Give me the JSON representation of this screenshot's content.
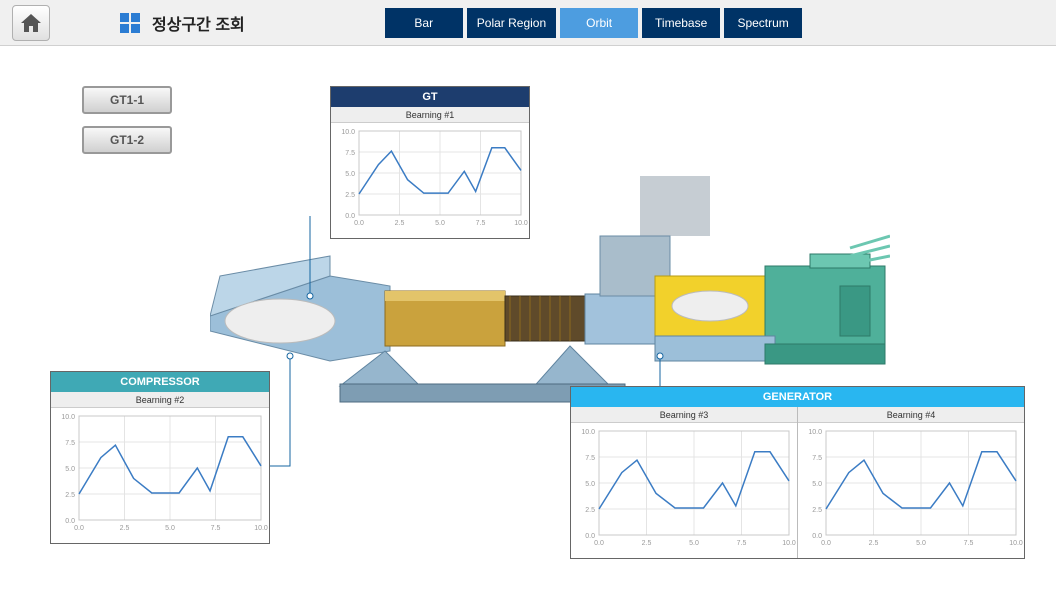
{
  "header": {
    "title": "정상구간 조회",
    "tabs": [
      "Bar",
      "Polar Region",
      "Orbit",
      "Timebase",
      "Spectrum"
    ],
    "active_tab": "Orbit"
  },
  "unit_buttons": [
    "GT1-1",
    "GT1-2"
  ],
  "charts": {
    "gt": {
      "title": "GT",
      "title_bg": "#1d3d6e",
      "subtitle": "Bearning #1",
      "type": "line",
      "xlim": [
        0,
        10
      ],
      "ylim": [
        0,
        10
      ],
      "xticks": [
        0.0,
        2.5,
        5.0,
        7.5,
        10.0
      ],
      "yticks": [
        0.0,
        2.5,
        5.0,
        7.5,
        10.0
      ],
      "line_color": "#3b7cc4",
      "grid_color": "#e4e4e4",
      "points": [
        [
          0,
          2.5
        ],
        [
          1.2,
          6.0
        ],
        [
          2.0,
          7.6
        ],
        [
          3.0,
          4.2
        ],
        [
          4.0,
          2.6
        ],
        [
          5.5,
          2.6
        ],
        [
          6.5,
          5.2
        ],
        [
          7.2,
          2.8
        ],
        [
          8.2,
          8.0
        ],
        [
          9.0,
          8.0
        ],
        [
          10,
          5.3
        ]
      ]
    },
    "compressor": {
      "title": "COMPRESSOR",
      "title_bg": "#3fa9b5",
      "subtitle": "Bearning #2",
      "type": "line",
      "xlim": [
        0,
        10
      ],
      "ylim": [
        0,
        10
      ],
      "xticks": [
        0.0,
        2.5,
        5.0,
        7.5,
        10.0
      ],
      "yticks": [
        0.0,
        2.5,
        5.0,
        7.5,
        10.0
      ],
      "line_color": "#3b7cc4",
      "grid_color": "#e4e4e4",
      "points": [
        [
          0,
          2.5
        ],
        [
          1.2,
          6.0
        ],
        [
          2.0,
          7.2
        ],
        [
          3.0,
          4.0
        ],
        [
          4.0,
          2.6
        ],
        [
          5.5,
          2.6
        ],
        [
          6.5,
          5.0
        ],
        [
          7.2,
          2.8
        ],
        [
          8.2,
          8.0
        ],
        [
          9.0,
          8.0
        ],
        [
          10,
          5.2
        ]
      ]
    },
    "generator": {
      "title": "GENERATOR",
      "title_bg": "#29b6f0",
      "subtitles": [
        "Bearning #3",
        "Bearning #4"
      ],
      "type": "line",
      "xlim": [
        0,
        10
      ],
      "ylim": [
        0,
        10
      ],
      "xticks": [
        0.0,
        2.5,
        5.0,
        7.5,
        10.0
      ],
      "yticks": [
        0.0,
        2.5,
        5.0,
        7.5,
        10.0
      ],
      "line_color": "#3b7cc4",
      "grid_color": "#e4e4e4",
      "series_a": [
        [
          0,
          2.5
        ],
        [
          1.2,
          6.0
        ],
        [
          2.0,
          7.2
        ],
        [
          3.0,
          4.0
        ],
        [
          4.0,
          2.6
        ],
        [
          5.5,
          2.6
        ],
        [
          6.5,
          5.0
        ],
        [
          7.2,
          2.8
        ],
        [
          8.2,
          8.0
        ],
        [
          9.0,
          8.0
        ],
        [
          10,
          5.2
        ]
      ],
      "series_b": [
        [
          0,
          2.5
        ],
        [
          1.2,
          6.0
        ],
        [
          2.0,
          7.2
        ],
        [
          3.0,
          4.0
        ],
        [
          4.0,
          2.6
        ],
        [
          5.5,
          2.6
        ],
        [
          6.5,
          5.0
        ],
        [
          7.2,
          2.8
        ],
        [
          8.2,
          8.0
        ],
        [
          9.0,
          8.0
        ],
        [
          10,
          5.2
        ]
      ]
    }
  },
  "tick_font_size": 7,
  "tick_color": "#999999"
}
